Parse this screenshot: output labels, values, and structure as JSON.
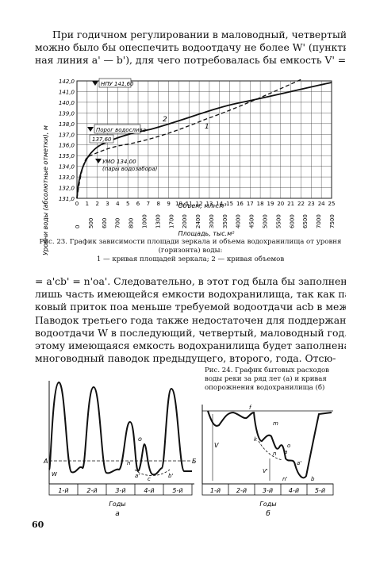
{
  "para1": [
    "При годичном регулировании в маловодный, четвертый, год",
    "можно было бы опеспечить водоотдачу не более W' (пунктир-",
    "ная линия a' — b'), для чего потребовалась бы емкость V' ="
  ],
  "fig23": {
    "y_axis_label": "Уровни воды (абсолютные отметки), м",
    "y_ticks": [
      "142,0",
      "141,0",
      "140,0",
      "139,0",
      "138,0",
      "137,0",
      "136,0",
      "135,0",
      "134,0",
      "133,0",
      "132,0",
      "131,0"
    ],
    "x_top_label": "Объем, млн.м³",
    "x_top_ticks": [
      "0",
      "1",
      "2",
      "3",
      "4",
      "5",
      "6",
      "7",
      "8",
      "9",
      "10",
      "11",
      "12",
      "13",
      "14",
      "15",
      "16",
      "17",
      "18",
      "19",
      "20",
      "21",
      "22",
      "23",
      "24",
      "25"
    ],
    "x_bottom_label": "Площадь, тыс.м²",
    "x_bottom_ticks": [
      "0",
      "500",
      "600",
      "700",
      "800",
      "1000",
      "1300",
      "1700",
      "2000",
      "2400",
      "3000",
      "3500",
      "4000",
      "4500",
      "5000",
      "5500",
      "6000",
      "6500",
      "7000",
      "7500"
    ],
    "labels": {
      "npu": "НПУ 141,60",
      "porog": "Порог водослива",
      "porog_val": "137,60",
      "umo": "УМО 134,00",
      "umo_note": "(пары водозабора)",
      "curve1": "1",
      "curve2": "2"
    },
    "caption_line1": "Рис. 23. График зависимости площади зеркала и объема водохранилища от уровня (горизонта) воды:",
    "caption_line2": "1 — кривая площадей зеркала; 2 — кривая объемов"
  },
  "para2": [
    "= a'cb' = n'oa'. Следовательно, в этот год была бы заполнена",
    "лишь часть имеющейся емкости водохранилища, так как павод-",
    "ковый приток поа меньше требуемой водоотдачи acb в межень.",
    "Паводок третьего года также недостаточен для поддержания",
    "водоотдачи W в последующий, четвертый, маловодный год. По-",
    "этому имеющаяся емкость водохранилища будет заполнена в",
    "многоводный паводок предыдущего, второго, года. Отсю-"
  ],
  "fig24": {
    "caption": "Рис. 24. График бытовых расходов воды реки за ряд лет (а) и кривая опорожнения водохранилища (б)",
    "years": [
      "1-й",
      "2-й",
      "3-й",
      "4-й",
      "5-й"
    ],
    "axis_label": "Годы",
    "panel_a": "а",
    "panel_b": "б",
    "letters_a": {
      "A": "A",
      "B": "Б",
      "W": "W",
      "o": "o",
      "c": "c",
      "a": "a'",
      "b": "b'",
      "n": "n"
    },
    "letters_b": {
      "V": "V",
      "Vp": "V'",
      "f": "f",
      "m": "m",
      "k": "k",
      "n": "n",
      "a": "a",
      "a1": "a'",
      "b": "b",
      "n1": "n'",
      "o": "o"
    }
  },
  "page_number": "60"
}
